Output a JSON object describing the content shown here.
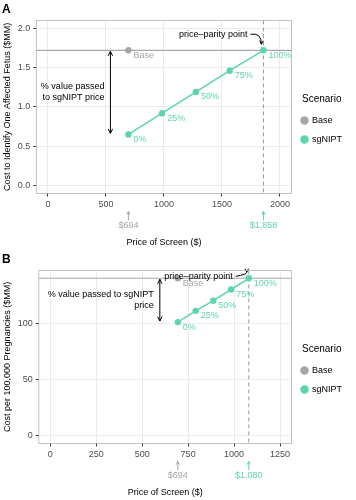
{
  "chart_data": [
    {
      "type": "scatter",
      "title": "A",
      "x_label": "Price of Screen ($)",
      "y_label": "Cost to Identify One Affected Fetus ($MM)",
      "xlim": [
        -100,
        2100
      ],
      "xticks": [
        0,
        500,
        1000,
        1500,
        2000
      ],
      "ylim": [
        -0.1,
        2.1
      ],
      "yticks": [
        {
          "value": 0,
          "label": "0.0"
        },
        {
          "value": 0.5,
          "label": "0.5"
        },
        {
          "value": 1,
          "label": "1.0"
        },
        {
          "value": 1.5,
          "label": "1.5"
        },
        {
          "value": 2,
          "label": "2.0"
        }
      ],
      "grid": true,
      "legend": "right",
      "legend_title": "Scenario",
      "series": [
        {
          "name": "Base",
          "type": "scatter",
          "color": "#a6a6a6",
          "x": [
            694
          ],
          "values": [
            1.72
          ],
          "point_labels": [
            "Base"
          ]
        },
        {
          "name": "sgNIPT",
          "type": "line",
          "color": "#5cd6a9",
          "x": [
            694,
            985,
            1276,
            1567,
            1858
          ],
          "values": [
            0.65,
            0.92,
            1.19,
            1.46,
            1.72
          ],
          "point_labels": [
            "0%",
            "25%",
            "50%",
            "75%",
            "100%"
          ]
        }
      ],
      "annotations": {
        "parity": "price–parity point",
        "value_passed": "% value passed to sgNIPT price"
      },
      "x_markers": [
        {
          "value": 694,
          "label": "$694"
        },
        {
          "value": 1858,
          "label": "$1,858"
        }
      ]
    },
    {
      "type": "scatter",
      "title": "B",
      "x_label": "Price of Screen ($)",
      "y_label": "Cost per 100,000 Pregnancies ($MM)",
      "xlim": [
        -62.5,
        1312.5
      ],
      "xticks": [
        0,
        250,
        500,
        750,
        1000,
        1250
      ],
      "ylim": [
        -7,
        147
      ],
      "yticks": [
        0,
        50,
        100
      ],
      "grid": true,
      "legend": "right",
      "legend_title": "Scenario",
      "series": [
        {
          "name": "Base",
          "type": "scatter",
          "color": "#a6a6a6",
          "x": [
            694
          ],
          "values": [
            140
          ],
          "point_labels": [
            "Base"
          ]
        },
        {
          "name": "sgNIPT",
          "type": "line",
          "color": "#5cd6a9",
          "x": [
            694,
            791,
            887,
            984,
            1080
          ],
          "values": [
            101,
            111,
            120,
            130,
            140
          ],
          "point_labels": [
            "0%",
            "25%",
            "50%",
            "75%",
            "100%"
          ]
        }
      ],
      "annotations": {
        "parity": "price–parity point",
        "value_passed": "% value passed to sgNIPT price"
      },
      "x_markers": [
        {
          "value": 694,
          "label": "$694"
        },
        {
          "value": 1080,
          "label": "$1,080"
        }
      ]
    }
  ]
}
